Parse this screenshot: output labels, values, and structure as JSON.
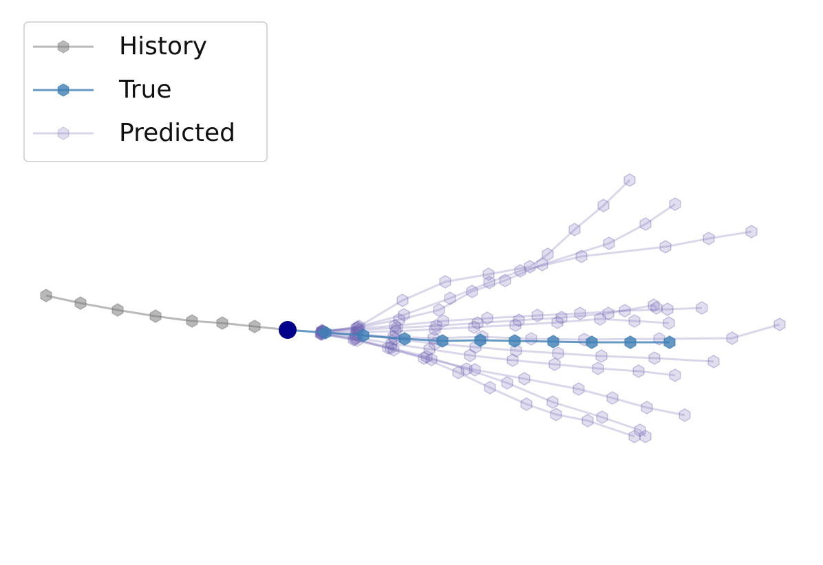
{
  "chart_data": {
    "type": "line",
    "xlim": [
      -41.8,
      77.8
    ],
    "ylim": [
      -34.2,
      48.0
    ],
    "legend": "upper left",
    "current_color": "#00008b",
    "series": [
      {
        "name": "History",
        "color": "#808080",
        "x": [
          -35.1,
          -30.1,
          -24.7,
          -19.2,
          -13.9,
          -9.5,
          -4.8,
          0
        ],
        "y": [
          5.0,
          3.9,
          2.9,
          2.0,
          1.3,
          1.0,
          0.5,
          0
        ]
      },
      {
        "name": "True",
        "color": "#3f7fb5",
        "x": [
          0,
          5.5,
          11,
          17,
          22.5,
          28,
          33,
          38.6,
          44.2,
          49.8,
          55.5
        ],
        "y": [
          0,
          -0.4,
          -0.8,
          -1.3,
          -1.6,
          -1.5,
          -1.6,
          -1.7,
          -1.8,
          -1.8,
          -1.8
        ]
      },
      {
        "name": "Predicted",
        "color": "#6a5fb0",
        "x": [
          5.0,
          10.2,
          16.7,
          22.9,
          29.2,
          35.2,
          37.8,
          41.7,
          45.9,
          49.7
        ],
        "y": [
          -0.2,
          0.4,
          4.3,
          7.0,
          8.1,
          9.2,
          11.0,
          14.6,
          18.1,
          21.8
        ]
      },
      {
        "name": "Predicted",
        "color": "#6a5fb0",
        "x": [
          5.2,
          10.4,
          16.9,
          23.6,
          29.3,
          33.8,
          42.7,
          54.9,
          61.2,
          67.4
        ],
        "y": [
          -0.3,
          0.5,
          2.2,
          4.6,
          6.9,
          8.6,
          10.7,
          12.1,
          13.3,
          14.3
        ]
      },
      {
        "name": "Predicted",
        "color": "#6a5fb0",
        "x": [
          5.1,
          10.1,
          16.2,
          22.0,
          26.8,
          31.6,
          37.0,
          46.7,
          52.0,
          56.3
        ],
        "y": [
          -0.3,
          0.3,
          1.5,
          2.9,
          5.6,
          7.2,
          9.5,
          12.6,
          15.4,
          18.3
        ]
      },
      {
        "name": "Predicted",
        "color": "#6a5fb0",
        "x": [
          4.9,
          9.9,
          15.4,
          21.2,
          28.3,
          35.4,
          43.1,
          54.0,
          64.6,
          71.5
        ],
        "y": [
          -0.4,
          -0.6,
          -1.0,
          -1.2,
          -1.0,
          -1.3,
          -1.4,
          -1.3,
          -1.2,
          0.8
        ]
      },
      {
        "name": "Predicted",
        "color": "#6a5fb0",
        "x": [
          5.0,
          10.0,
          15.6,
          22.6,
          29.0,
          36.3,
          42.5,
          49.0,
          55.2,
          60.2
        ],
        "y": [
          -0.1,
          0.2,
          0.6,
          1.3,
          1.7,
          2.1,
          2.4,
          2.8,
          3.0,
          3.2
        ]
      },
      {
        "name": "Predicted",
        "color": "#6a5fb0",
        "x": [
          4.9,
          9.8,
          15.0,
          20.2,
          26.0,
          31.9,
          38.5,
          45.7,
          51.2,
          52.0
        ],
        "y": [
          -0.5,
          -1.3,
          -2.6,
          -3.9,
          -5.7,
          -7.7,
          -10.5,
          -12.7,
          -14.6,
          -15.5
        ]
      },
      {
        "name": "Predicted",
        "color": "#6a5fb0",
        "x": [
          5.0,
          10.1,
          15.4,
          20.9,
          27.2,
          34.4,
          42.3,
          47.2,
          52.2,
          57.7
        ],
        "y": [
          -0.6,
          -1.5,
          -2.9,
          -4.3,
          -5.8,
          -7.1,
          -8.6,
          -9.9,
          -11.3,
          -12.4
        ]
      },
      {
        "name": "Predicted",
        "color": "#6a5fb0",
        "x": [
          4.8,
          9.6,
          14.6,
          19.8,
          24.8,
          29.4,
          34.7,
          39.0,
          43.6,
          50.4
        ],
        "y": [
          -0.6,
          -1.4,
          -2.6,
          -4.1,
          -6.2,
          -8.4,
          -10.8,
          -12.3,
          -13.2,
          -15.5
        ]
      },
      {
        "name": "Predicted",
        "color": "#6a5fb0",
        "x": [
          5.0,
          10.1,
          15.6,
          21.4,
          27.3,
          33.2,
          39.3,
          45.6,
          53.3,
          61.9
        ],
        "y": [
          -0.3,
          -0.7,
          -1.3,
          -2.0,
          -2.5,
          -3.0,
          -3.4,
          -3.8,
          -4.1,
          -4.6
        ]
      },
      {
        "name": "Predicted",
        "color": "#6a5fb0",
        "x": [
          4.9,
          9.9,
          15.1,
          20.6,
          26.5,
          32.7,
          38.8,
          45.1,
          51.0,
          56.3
        ],
        "y": [
          -0.5,
          -1.1,
          -2.0,
          -2.8,
          -3.7,
          -4.4,
          -5.0,
          -5.6,
          -6.0,
          -6.6
        ]
      },
      {
        "name": "Predicted",
        "color": "#6a5fb0",
        "x": [
          5.1,
          10.3,
          15.9,
          21.6,
          27.6,
          33.6,
          39.8,
          46.6,
          53.2,
          53.6
        ],
        "y": [
          -0.2,
          0.0,
          0.3,
          0.6,
          1.0,
          1.4,
          1.8,
          2.4,
          3.6,
          3.2
        ]
      },
      {
        "name": "Predicted",
        "color": "#6a5fb0",
        "x": [
          5.0,
          10.1,
          15.7,
          21.4,
          27.1,
          33.1,
          39.2,
          45.4,
          50.4,
          55.4
        ],
        "y": [
          -0.2,
          -0.3,
          -0.2,
          0.1,
          0.4,
          0.7,
          1.1,
          1.6,
          1.3,
          1.0
        ]
      }
    ]
  }
}
